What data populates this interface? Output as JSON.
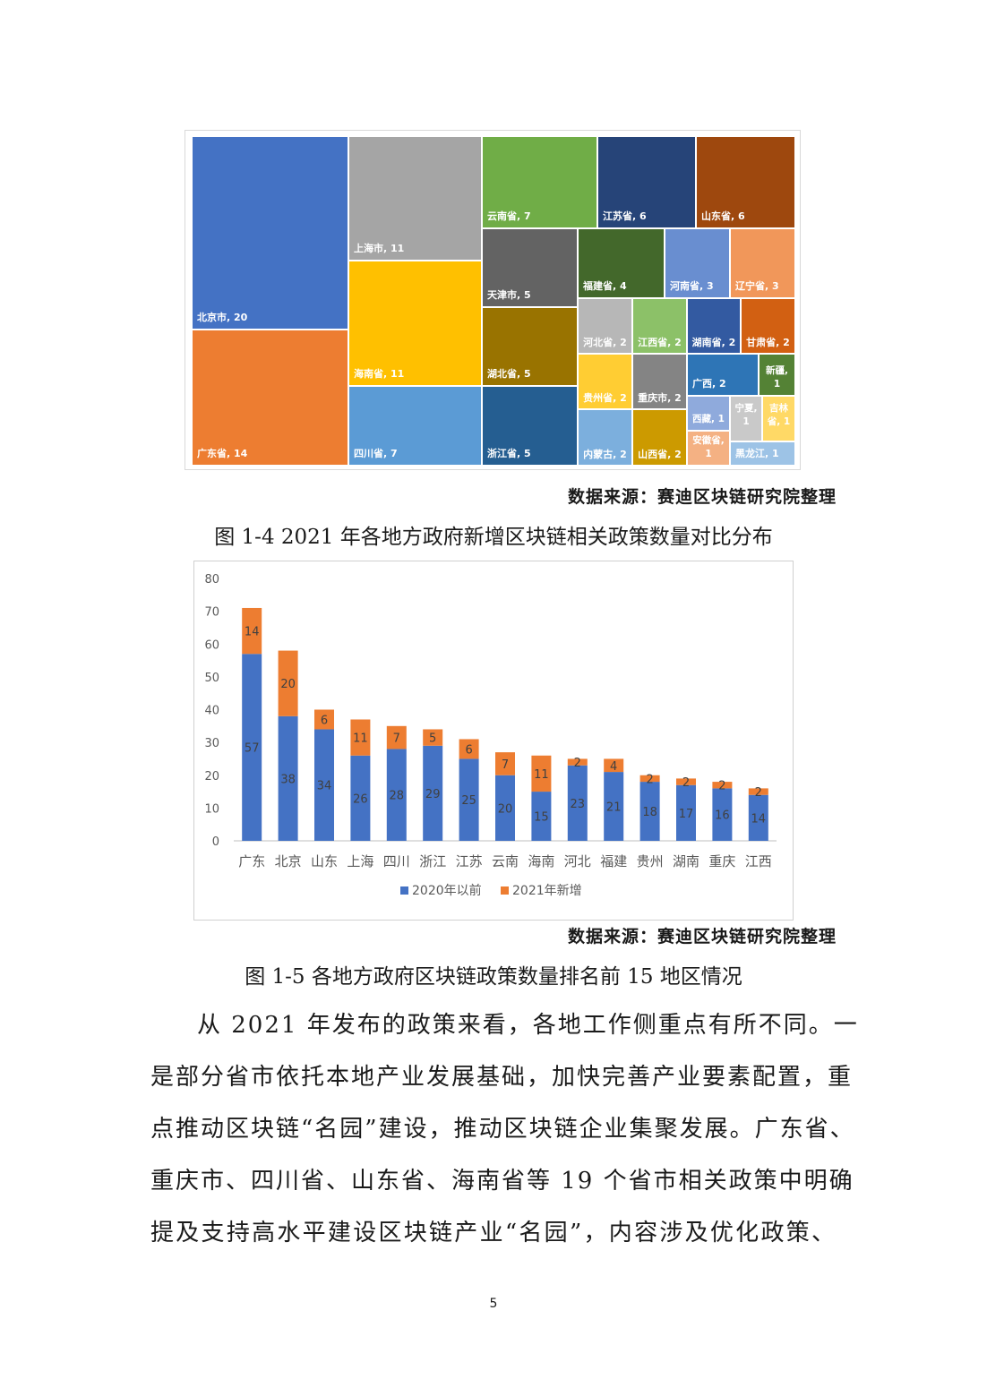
{
  "treemap": {
    "source": "数据来源：赛迪区块链研究院整理",
    "caption": "图 1-4    2021 年各地方政府新增区块链相关政策数量对比分布",
    "cells": [
      {
        "label": "北京市, 20",
        "color": "#4472c4"
      },
      {
        "label": "广东省, 14",
        "color": "#ed7d31"
      },
      {
        "label": "上海市, 11",
        "color": "#a5a5a5"
      },
      {
        "label": "海南省, 11",
        "color": "#ffc000"
      },
      {
        "label": "四川省, 7",
        "color": "#5b9bd5"
      },
      {
        "label": "云南省, 7",
        "color": "#70ad47"
      },
      {
        "label": "江苏省, 6",
        "color": "#264478"
      },
      {
        "label": "山东省, 6",
        "color": "#9e480e"
      },
      {
        "label": "天津市, 5",
        "color": "#636363"
      },
      {
        "label": "湖北省, 5",
        "color": "#997300"
      },
      {
        "label": "浙江省, 5",
        "color": "#255e91"
      },
      {
        "label": "福建省, 4",
        "color": "#43682b"
      },
      {
        "label": "河南省, 3",
        "color": "#698ed0"
      },
      {
        "label": "辽宁省, 3",
        "color": "#f1975a"
      },
      {
        "label": "河北省, 2",
        "color": "#b7b7b7"
      },
      {
        "label": "江西省, 2",
        "color": "#8cc168"
      },
      {
        "label": "湖南省, 2",
        "color": "#335aa1"
      },
      {
        "label": "甘肃省, 2",
        "color": "#d26012"
      },
      {
        "label": "贵州省, 2",
        "color": "#ffcd33"
      },
      {
        "label": "重庆市, 2",
        "color": "#848484"
      },
      {
        "label": "内蒙古, 2",
        "color": "#7cafdd"
      },
      {
        "label": "山西省, 2",
        "color": "#cc9a00"
      },
      {
        "label": "广西, 2",
        "color": "#2e75b6"
      },
      {
        "label": "新疆, 1",
        "color": "#548235"
      },
      {
        "label": "西藏, 1",
        "color": "#8faadc"
      },
      {
        "label": "宁夏, 1",
        "color": "#c9c9c9"
      },
      {
        "label": "吉林省, 1",
        "color": "#ffd966"
      },
      {
        "label": "安徽省, 1",
        "color": "#f4b183"
      },
      {
        "label": "黑龙江, 1",
        "color": "#9dc3e6"
      }
    ]
  },
  "bar": {
    "source": "数据来源：赛迪区块链研究院整理",
    "caption": "图 1-5    各地方政府区块链政策数量排名前 15 地区情况"
  },
  "chart_data": {
    "type": "bar",
    "stacked": true,
    "categories": [
      "广东",
      "北京",
      "山东",
      "上海",
      "四川",
      "浙江",
      "江苏",
      "云南",
      "海南",
      "河北",
      "福建",
      "贵州",
      "湖南",
      "重庆",
      "江西"
    ],
    "series": [
      {
        "name": "2020年以前",
        "color": "#4472c4",
        "values": [
          57,
          38,
          34,
          26,
          28,
          29,
          25,
          20,
          15,
          23,
          21,
          18,
          17,
          16,
          14
        ]
      },
      {
        "name": "2021年新增",
        "color": "#ed7d31",
        "values": [
          14,
          20,
          6,
          11,
          7,
          5,
          6,
          7,
          11,
          2,
          4,
          2,
          2,
          2,
          2
        ]
      }
    ],
    "y_ticks": [
      "0",
      "10",
      "20",
      "30",
      "40",
      "50",
      "60",
      "70",
      "80"
    ],
    "ylim": [
      0,
      80
    ],
    "grid": false,
    "legend_position": "bottom"
  },
  "body": {
    "paragraph_lines": [
      "从 2021 年发布的政策来看，各地工作侧重点有所不同。一",
      "是部分省市依托本地产业发展基础，加快完善产业要素配置，重",
      "点推动区块链“名园”建设，推动区块链企业集聚发展。广东省、",
      "重庆市、四川省、山东省、海南省等 19 个省市相关政策中明确",
      "提及支持高水平建设区块链产业“名园”，内容涉及优化政策、"
    ]
  },
  "page_number": "5"
}
